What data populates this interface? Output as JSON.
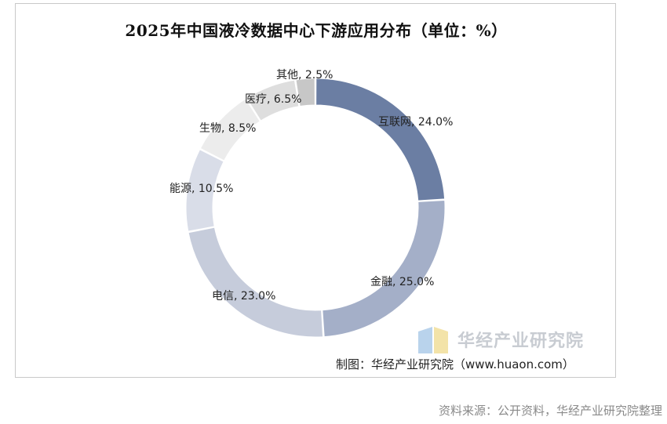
{
  "chart_data": {
    "type": "pie",
    "title": "2025年中国液冷数据中心下游应用分布（单位：%）",
    "slices": [
      {
        "label": "互联网",
        "value": 24.0,
        "data_label": "互联网, 24.0%",
        "color": "#6b7ea3"
      },
      {
        "label": "金融",
        "value": 25.0,
        "data_label": "金融, 25.0%",
        "color": "#a4afc8"
      },
      {
        "label": "电信",
        "value": 23.0,
        "data_label": "电信, 23.0%",
        "color": "#c6ccdb"
      },
      {
        "label": "能源",
        "value": 10.5,
        "data_label": "能源, 10.5%",
        "color": "#d9dde8"
      },
      {
        "label": "生物",
        "value": 8.5,
        "data_label": "生物, 8.5%",
        "color": "#ececec"
      },
      {
        "label": "医疗",
        "value": 6.5,
        "data_label": "医疗, 6.5%",
        "color": "#dedede"
      },
      {
        "label": "其他",
        "value": 2.5,
        "data_label": "其他, 2.5%",
        "color": "#c7c7c7"
      }
    ],
    "legend": "none"
  },
  "watermark": {
    "text": "华经产业研究院"
  },
  "credit": "制图：华经产业研究院（www.huaon.com）",
  "source": "资料来源：公开资料，华经产业研究院整理"
}
